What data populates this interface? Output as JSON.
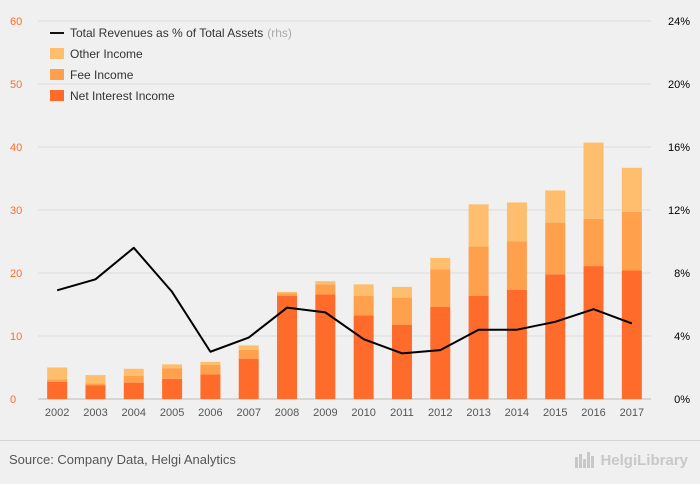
{
  "chart_data": {
    "type": "bar",
    "stacked": true,
    "categories": [
      "2002",
      "2003",
      "2004",
      "2005",
      "2006",
      "2007",
      "2008",
      "2009",
      "2010",
      "2011",
      "2012",
      "2013",
      "2014",
      "2015",
      "2016",
      "2017"
    ],
    "series": [
      {
        "name": "Net Interest Income",
        "color": "#ff6b2b",
        "values": [
          2.7,
          2.2,
          2.6,
          3.2,
          3.9,
          6.4,
          16.4,
          16.6,
          13.3,
          11.8,
          14.6,
          16.4,
          17.3,
          19.8,
          21.1,
          20.4
        ]
      },
      {
        "name": "Fee Income",
        "color": "#ffa04d",
        "values": [
          0.4,
          0.3,
          1.1,
          1.7,
          1.5,
          1.4,
          0.4,
          1.6,
          3.1,
          4.3,
          6.0,
          7.8,
          7.7,
          8.2,
          7.5,
          9.3
        ]
      },
      {
        "name": "Other Income",
        "color": "#ffbe6e",
        "values": [
          1.9,
          1.3,
          1.1,
          0.6,
          0.5,
          0.7,
          0.2,
          0.5,
          1.8,
          1.7,
          1.8,
          6.7,
          6.2,
          5.1,
          12.1,
          7.0
        ]
      }
    ],
    "line": {
      "name": "Total Revenues as % of Total Assets",
      "axis_note": "(rhs)",
      "color": "#000000",
      "values": [
        6.9,
        7.6,
        9.6,
        6.8,
        3.0,
        3.9,
        5.8,
        5.5,
        3.8,
        2.9,
        3.1,
        4.4,
        4.4,
        4.9,
        5.7,
        4.8
      ]
    },
    "yaxis_left": {
      "ticks": [
        "0",
        "10",
        "20",
        "30",
        "40",
        "50",
        "60"
      ],
      "min": 0,
      "max": 60,
      "color": "#ff6b2b"
    },
    "yaxis_right": {
      "ticks": [
        "0%",
        "4%",
        "8%",
        "12%",
        "16%",
        "20%",
        "24%"
      ],
      "min": 0,
      "max": 24,
      "color": "#000000"
    },
    "legend_placement": "top-left",
    "grid": true
  },
  "legend": {
    "line_label": "Total Revenues as % of Total Assets",
    "line_note": "(rhs)",
    "other_label": "Other Income",
    "fee_label": "Fee Income",
    "nii_label": "Net Interest Income"
  },
  "footer": {
    "source": "Source: Company Data, Helgi Analytics",
    "brand": "HelgiLibrary"
  }
}
